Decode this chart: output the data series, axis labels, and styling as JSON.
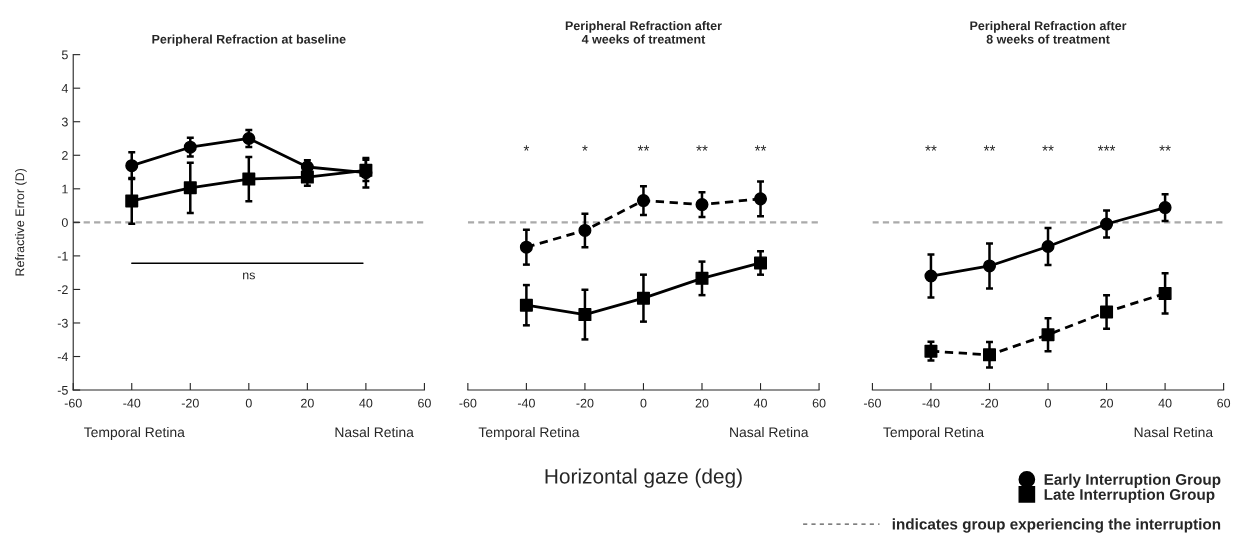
{
  "chart_data": [
    {
      "type": "line",
      "title": "Peripheral Refraction at baseline",
      "ylabel": "Refractive Error (D)",
      "x": [
        -40,
        -20,
        0,
        20,
        40
      ],
      "xlim": [
        -60,
        60
      ],
      "xticks": [
        -60,
        -40,
        -20,
        0,
        20,
        40,
        60
      ],
      "ylim": [
        -5,
        5
      ],
      "yticks": [
        -5,
        -4,
        -3,
        -2,
        -1,
        0,
        1,
        2,
        3,
        4,
        5
      ],
      "grid": false,
      "legend": false,
      "series": [
        {
          "color": "#000000",
          "marker": "circle",
          "line_style": "solid",
          "values": [
            1.69,
            2.24,
            2.5,
            1.65,
            1.48
          ],
          "errors": [
            0.4,
            0.28,
            0.25,
            0.2,
            0.44
          ]
        },
        {
          "color": "#000000",
          "marker": "square",
          "line_style": "solid",
          "values": [
            0.64,
            1.03,
            1.29,
            1.35,
            1.55
          ],
          "errors": [
            0.68,
            0.75,
            0.66,
            0.26,
            0.32
          ]
        }
      ],
      "ref_lines": [
        {
          "axis": "y",
          "value": 0,
          "color": "#aaaaaa",
          "line_style": "dashed"
        }
      ],
      "annotations": [
        "Temporal Retina",
        "Nasal Retina",
        "ns"
      ]
    },
    {
      "type": "line",
      "title": "Peripheral Refraction after\n4 weeks of treatment",
      "xlabel": "Horizontal gaze (deg)",
      "x": [
        -40,
        -20,
        0,
        20,
        40
      ],
      "xlim": [
        -60,
        60
      ],
      "xticks": [
        -60,
        -40,
        -20,
        0,
        20,
        40,
        60
      ],
      "ylim": [
        -5,
        5
      ],
      "tick_labels": "x",
      "grid": false,
      "legend": false,
      "series": [
        {
          "color": "#000000",
          "marker": "circle",
          "line_style": "dashed",
          "values": [
            -0.74,
            -0.24,
            0.65,
            0.53,
            0.7
          ],
          "errors": [
            0.52,
            0.5,
            0.43,
            0.37,
            0.52
          ]
        },
        {
          "color": "#000000",
          "marker": "square",
          "line_style": "solid",
          "values": [
            -2.47,
            -2.75,
            -2.26,
            -1.67,
            -1.21
          ],
          "errors": [
            0.6,
            0.74,
            0.7,
            0.5,
            0.35
          ]
        }
      ],
      "ref_lines": [
        {
          "axis": "y",
          "value": 0,
          "color": "#aaaaaa",
          "line_style": "dashed"
        }
      ],
      "annotations": [
        "Temporal Retina",
        "Nasal Retina",
        "*",
        "*",
        "**",
        "**",
        "**"
      ]
    },
    {
      "type": "line",
      "title": "Peripheral Refraction after\n8 weeks of treatment",
      "x": [
        -40,
        -20,
        0,
        20,
        40
      ],
      "xlim": [
        -60,
        60
      ],
      "xticks": [
        -60,
        -40,
        -20,
        0,
        20,
        40,
        60
      ],
      "ylim": [
        -5,
        5
      ],
      "tick_labels": "x",
      "grid": false,
      "legend": "bottom right",
      "series": [
        {
          "name": "Early Interruption Group",
          "color": "#000000",
          "marker": "circle",
          "line_style": "solid",
          "values": [
            -1.6,
            -1.3,
            -0.72,
            -0.05,
            0.44
          ],
          "errors": [
            0.64,
            0.67,
            0.55,
            0.4,
            0.4
          ]
        },
        {
          "name": "Late Interruption Group",
          "color": "#000000",
          "marker": "square",
          "line_style": "dashed",
          "values": [
            -3.84,
            -3.95,
            -3.35,
            -2.67,
            -2.12
          ],
          "errors": [
            0.28,
            0.38,
            0.49,
            0.5,
            0.6
          ]
        }
      ],
      "ref_lines": [
        {
          "axis": "y",
          "value": 0,
          "color": "#aaaaaa",
          "line_style": "dashed"
        }
      ],
      "annotations": [
        "Temporal Retina",
        "Nasal Retina",
        "**",
        "**",
        "**",
        "***",
        "**",
        "indicates group experiencing the interruption"
      ]
    }
  ]
}
